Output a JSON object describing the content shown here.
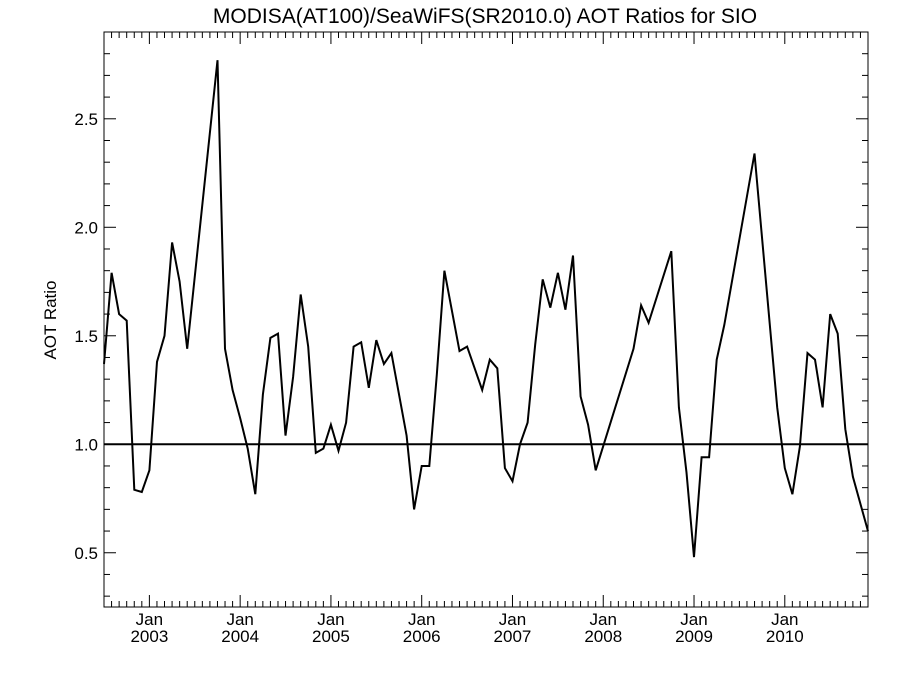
{
  "chart_data": {
    "type": "line",
    "title": "MODISA(AT100)/SeaWiFS(SR2010.0)  AOT Ratios for SIO",
    "ylabel": "AOT Ratio",
    "xlabel": "",
    "x_range": [
      "2002-07",
      "2010-12"
    ],
    "ylim": [
      0.25,
      2.9
    ],
    "yticks": [
      0.5,
      1.0,
      1.5,
      2.0,
      2.5
    ],
    "ytick_labels": [
      "0.5",
      "1.0",
      "1.5",
      "2.0",
      "2.5"
    ],
    "xtick_labels": [
      {
        "month": "2003-01",
        "line1": "Jan",
        "line2": "2003"
      },
      {
        "month": "2004-01",
        "line1": "Jan",
        "line2": "2004"
      },
      {
        "month": "2005-01",
        "line1": "Jan",
        "line2": "2005"
      },
      {
        "month": "2006-01",
        "line1": "Jan",
        "line2": "2006"
      },
      {
        "month": "2007-01",
        "line1": "Jan",
        "line2": "2007"
      },
      {
        "month": "2008-01",
        "line1": "Jan",
        "line2": "2008"
      },
      {
        "month": "2009-01",
        "line1": "Jan",
        "line2": "2009"
      },
      {
        "month": "2010-01",
        "line1": "Jan",
        "line2": "2010"
      }
    ],
    "reference_line": 1.0,
    "grid": false,
    "series": [
      {
        "color": "#000000",
        "points": [
          [
            "2002-07",
            1.37
          ],
          [
            "2002-08",
            1.79
          ],
          [
            "2002-09",
            1.6
          ],
          [
            "2002-10",
            1.57
          ],
          [
            "2002-11",
            0.79
          ],
          [
            "2002-12",
            0.78
          ],
          [
            "2003-01",
            0.88
          ],
          [
            "2003-02",
            1.38
          ],
          [
            "2003-03",
            1.5
          ],
          [
            "2003-04",
            1.93
          ],
          [
            "2003-05",
            1.75
          ],
          [
            "2003-06",
            1.44
          ],
          [
            "2003-10",
            2.77
          ],
          [
            "2003-11",
            1.44
          ],
          [
            "2003-12",
            1.25
          ],
          [
            "2004-01",
            1.12
          ],
          [
            "2004-02",
            0.98
          ],
          [
            "2004-03",
            0.77
          ],
          [
            "2004-04",
            1.23
          ],
          [
            "2004-05",
            1.49
          ],
          [
            "2004-06",
            1.51
          ],
          [
            "2004-07",
            1.04
          ],
          [
            "2004-08",
            1.31
          ],
          [
            "2004-09",
            1.69
          ],
          [
            "2004-10",
            1.45
          ],
          [
            "2004-11",
            0.96
          ],
          [
            "2004-12",
            0.98
          ],
          [
            "2005-01",
            1.09
          ],
          [
            "2005-02",
            0.97
          ],
          [
            "2005-03",
            1.1
          ],
          [
            "2005-04",
            1.45
          ],
          [
            "2005-05",
            1.47
          ],
          [
            "2005-06",
            1.26
          ],
          [
            "2005-07",
            1.48
          ],
          [
            "2005-08",
            1.37
          ],
          [
            "2005-09",
            1.42
          ],
          [
            "2005-11",
            1.04
          ],
          [
            "2005-12",
            0.7
          ],
          [
            "2006-01",
            0.9
          ],
          [
            "2006-02",
            0.9
          ],
          [
            "2006-03",
            1.32
          ],
          [
            "2006-04",
            1.8
          ],
          [
            "2006-06",
            1.43
          ],
          [
            "2006-07",
            1.45
          ],
          [
            "2006-09",
            1.25
          ],
          [
            "2006-10",
            1.39
          ],
          [
            "2006-11",
            1.35
          ],
          [
            "2006-12",
            0.89
          ],
          [
            "2007-01",
            0.83
          ],
          [
            "2007-02",
            1.0
          ],
          [
            "2007-03",
            1.1
          ],
          [
            "2007-04",
            1.46
          ],
          [
            "2007-05",
            1.76
          ],
          [
            "2007-06",
            1.63
          ],
          [
            "2007-07",
            1.79
          ],
          [
            "2007-08",
            1.62
          ],
          [
            "2007-09",
            1.87
          ],
          [
            "2007-10",
            1.22
          ],
          [
            "2007-11",
            1.09
          ],
          [
            "2007-12",
            0.88
          ],
          [
            "2008-05",
            1.44
          ],
          [
            "2008-06",
            1.64
          ],
          [
            "2008-07",
            1.56
          ],
          [
            "2008-10",
            1.89
          ],
          [
            "2008-11",
            1.17
          ],
          [
            "2008-12",
            0.87
          ],
          [
            "2009-01",
            0.48
          ],
          [
            "2009-02",
            0.94
          ],
          [
            "2009-03",
            0.94
          ],
          [
            "2009-04",
            1.39
          ],
          [
            "2009-05",
            1.55
          ],
          [
            "2009-09",
            2.34
          ],
          [
            "2009-12",
            1.17
          ],
          [
            "2010-01",
            0.89
          ],
          [
            "2010-02",
            0.77
          ],
          [
            "2010-03",
            0.99
          ],
          [
            "2010-04",
            1.42
          ],
          [
            "2010-05",
            1.39
          ],
          [
            "2010-06",
            1.17
          ],
          [
            "2010-07",
            1.6
          ],
          [
            "2010-08",
            1.51
          ],
          [
            "2010-09",
            1.07
          ],
          [
            "2010-10",
            0.85
          ],
          [
            "2010-12",
            0.6
          ]
        ]
      }
    ]
  }
}
